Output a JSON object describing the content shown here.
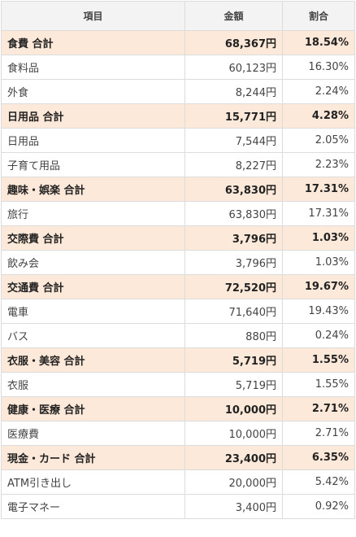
{
  "table": {
    "headers": [
      "項目",
      "金額",
      "割合"
    ],
    "rows": [
      {
        "kind": "total",
        "category": "食費 合計",
        "amount": "68,367円",
        "ratio": "18.54%"
      },
      {
        "kind": "item",
        "category": "食料品",
        "amount": "60,123円",
        "ratio": "16.30%"
      },
      {
        "kind": "item",
        "category": "外食",
        "amount": "8,244円",
        "ratio": "2.24%"
      },
      {
        "kind": "total",
        "category": "日用品 合計",
        "amount": "15,771円",
        "ratio": "4.28%"
      },
      {
        "kind": "item",
        "category": "日用品",
        "amount": "7,544円",
        "ratio": "2.05%"
      },
      {
        "kind": "item",
        "category": "子育て用品",
        "amount": "8,227円",
        "ratio": "2.23%"
      },
      {
        "kind": "total",
        "category": "趣味・娯楽 合計",
        "amount": "63,830円",
        "ratio": "17.31%"
      },
      {
        "kind": "item",
        "category": "旅行",
        "amount": "63,830円",
        "ratio": "17.31%"
      },
      {
        "kind": "total",
        "category": "交際費 合計",
        "amount": "3,796円",
        "ratio": "1.03%"
      },
      {
        "kind": "item",
        "category": "飲み会",
        "amount": "3,796円",
        "ratio": "1.03%"
      },
      {
        "kind": "total",
        "category": "交通費 合計",
        "amount": "72,520円",
        "ratio": "19.67%"
      },
      {
        "kind": "item",
        "category": "電車",
        "amount": "71,640円",
        "ratio": "19.43%"
      },
      {
        "kind": "item",
        "category": "バス",
        "amount": "880円",
        "ratio": "0.24%"
      },
      {
        "kind": "total",
        "category": "衣服・美容 合計",
        "amount": "5,719円",
        "ratio": "1.55%"
      },
      {
        "kind": "item",
        "category": "衣服",
        "amount": "5,719円",
        "ratio": "1.55%"
      },
      {
        "kind": "total",
        "category": "健康・医療 合計",
        "amount": "10,000円",
        "ratio": "2.71%"
      },
      {
        "kind": "item",
        "category": "医療費",
        "amount": "10,000円",
        "ratio": "2.71%"
      },
      {
        "kind": "total",
        "category": "現金・カード 合計",
        "amount": "23,400円",
        "ratio": "6.35%"
      },
      {
        "kind": "item",
        "category": "ATM引き出し",
        "amount": "20,000円",
        "ratio": "5.42%"
      },
      {
        "kind": "item",
        "category": "電子マネー",
        "amount": "3,400円",
        "ratio": "0.92%"
      }
    ]
  },
  "colors": {
    "total_row_bg": "#fde9d9",
    "header_bg": "#f3f3f3",
    "border": "#dcdcdc"
  }
}
